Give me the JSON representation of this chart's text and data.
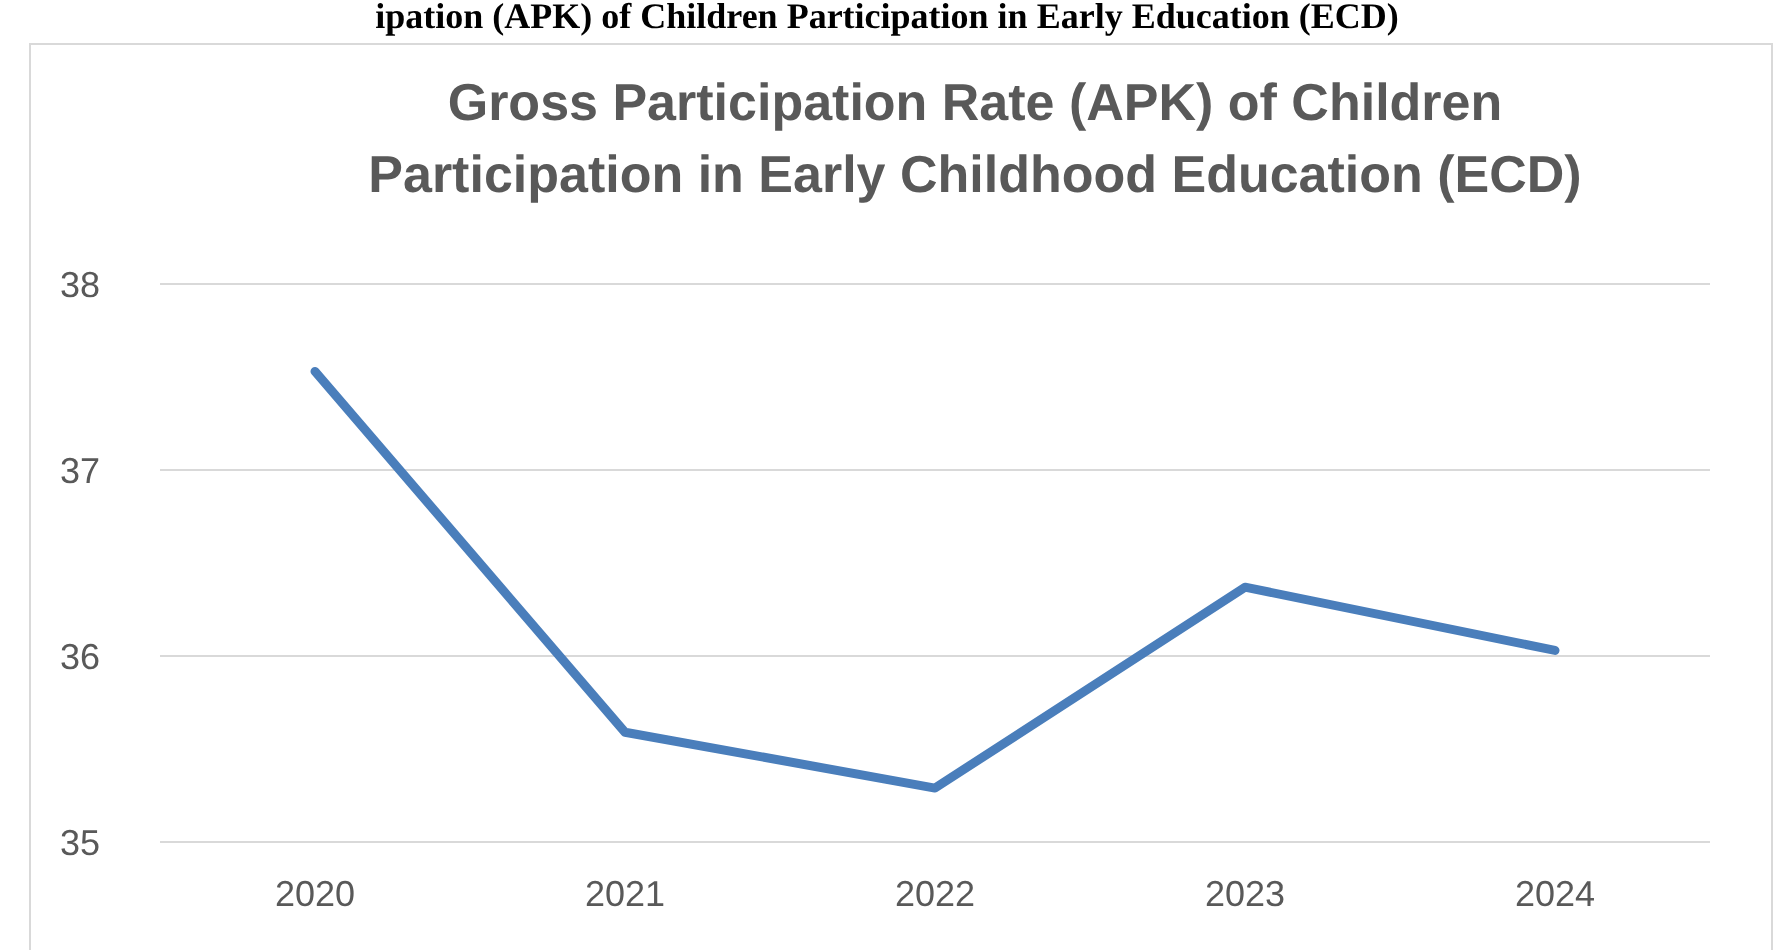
{
  "chart_data": {
    "type": "line",
    "title": "Gross Participation Rate (APK) of Children Participation in Early Childhood Education (ECD)",
    "annotations": [
      "ipation (APK) of Children Participation in Early Education (ECD)"
    ],
    "categories": [
      "2020",
      "2021",
      "2022",
      "2023",
      "2024"
    ],
    "series": [
      {
        "color": "#4a7ebb",
        "values": [
          37.53,
          35.59,
          35.29,
          36.37,
          36.03
        ]
      }
    ],
    "ylim": [
      35,
      38
    ],
    "yticks": [
      35,
      36,
      37,
      38
    ],
    "grid": "y",
    "marker": "none",
    "line_style": "solid"
  }
}
